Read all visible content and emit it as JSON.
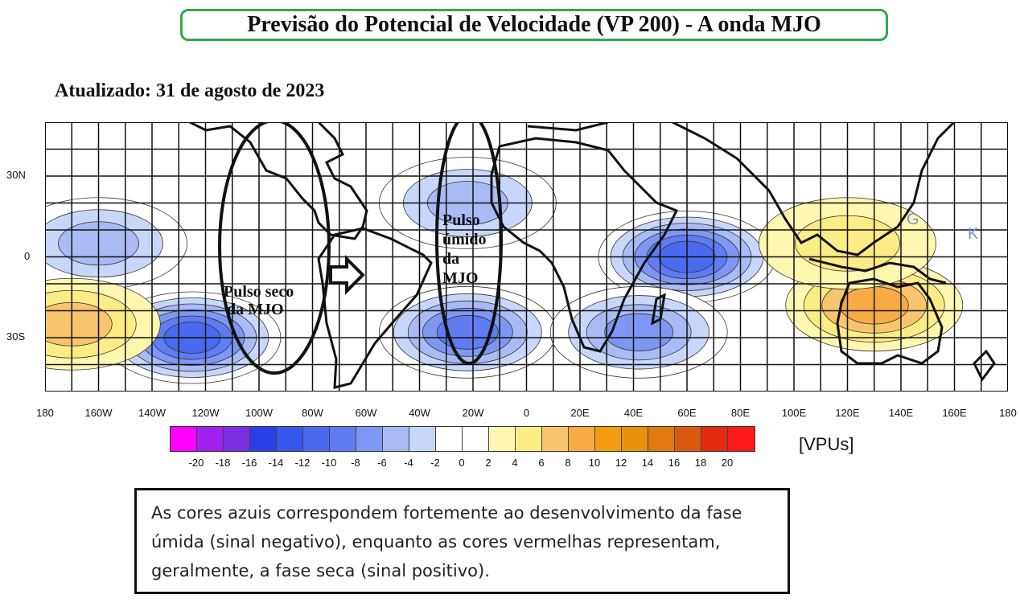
{
  "title": "Previsão do Potencial de Velocidade (VP 200) - A onda MJO",
  "updated": "Atualizado: 31 de agosto de 2023",
  "map": {
    "lat_labels": [
      "30N",
      "0",
      "30S"
    ],
    "lon_labels": [
      "180",
      "160W",
      "140W",
      "120W",
      "100W",
      "80W",
      "60W",
      "40W",
      "20W",
      "0",
      "20E",
      "40E",
      "60E",
      "80E",
      "100E",
      "120E",
      "140E",
      "160E",
      "180"
    ],
    "annotations": {
      "dry_pulse_line1": "Pulso seco",
      "dry_pulse_line2": "da MJO",
      "wet_pulse_line1": "Pulso",
      "wet_pulse_line2": "úmido",
      "wet_pulse_line3": "da",
      "wet_pulse_line4": "MJO"
    },
    "markers": [
      "G",
      "K"
    ],
    "anomalies": [
      {
        "name": "negative-centre-east-pacific-south",
        "lon": -125,
        "lat": -30,
        "value": -12
      },
      {
        "name": "negative-centre-atlantic",
        "lon": -22,
        "lat": -28,
        "value": -10
      },
      {
        "name": "negative-centre-atlantic-north",
        "lon": -22,
        "lat": 20,
        "value": -6
      },
      {
        "name": "negative-centre-indian",
        "lon": 60,
        "lat": 0,
        "value": -12
      },
      {
        "name": "negative-centre-mozambique",
        "lon": 42,
        "lat": -28,
        "value": -8
      },
      {
        "name": "negative-centre-central-pacific",
        "lon": -160,
        "lat": 5,
        "value": -6
      },
      {
        "name": "positive-centre-australia",
        "lon": 130,
        "lat": -18,
        "value": 8
      },
      {
        "name": "positive-centre-maritime",
        "lon": 120,
        "lat": 5,
        "value": 4
      },
      {
        "name": "positive-centre-west-pacific-south",
        "lon": -170,
        "lat": -25,
        "value": 6
      }
    ]
  },
  "colorbar": {
    "ticks": [
      "-20",
      "-18",
      "-16",
      "-14",
      "-12",
      "-10",
      "-8",
      "-6",
      "-4",
      "-2",
      "0",
      "2",
      "4",
      "6",
      "8",
      "10",
      "12",
      "14",
      "16",
      "18",
      "20"
    ],
    "colors": [
      "#ff00ff",
      "#a020f0",
      "#7a2fe0",
      "#2b3fe8",
      "#3557ec",
      "#4a6af0",
      "#5f7cf0",
      "#7d97f2",
      "#a9baf5",
      "#c8d6fa",
      "#ffffff",
      "#ffffff",
      "#fdf7b0",
      "#fbec86",
      "#f9c46e",
      "#f7ab45",
      "#f39c12",
      "#e7910d",
      "#e07a10",
      "#dc5a10",
      "#e22b10",
      "#ff1a1a"
    ],
    "unit": "[VPUs]"
  },
  "note": {
    "text": "As cores azuis correspondem fortemente ao desenvolvimento da fase úmida (sinal negativo), enquanto as cores vermelhas representam, geralmente, a fase seca (sinal positivo)."
  }
}
